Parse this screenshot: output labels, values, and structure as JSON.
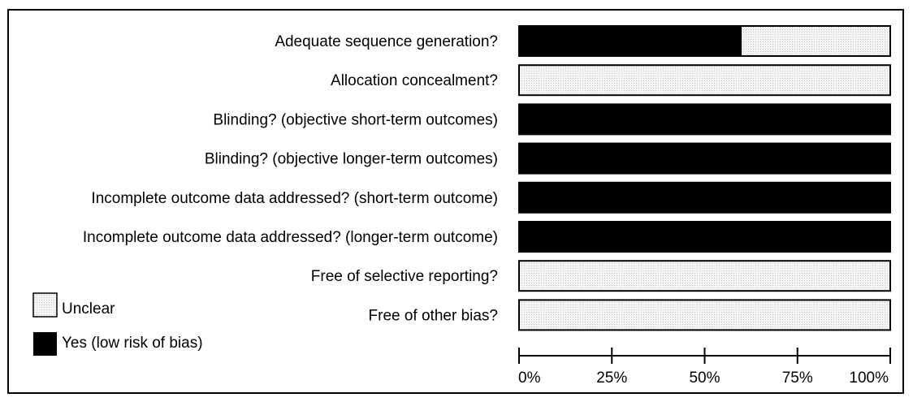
{
  "chart_data": {
    "type": "bar",
    "orientation": "horizontal",
    "stacked": true,
    "percent": true,
    "categories": [
      "Adequate sequence generation?",
      "Allocation concealment?",
      "Blinding? (objective short-term outcomes)",
      "Blinding? (objective longer-term outcomes)",
      "Incomplete outcome data addressed? (short-term outcome)",
      "Incomplete outcome data addressed? (longer-term outcome)",
      "Free of selective reporting?",
      "Free of other bias?"
    ],
    "series": [
      {
        "name": "Yes (low risk of bias)",
        "color": "#000000",
        "values": [
          60,
          0,
          100,
          100,
          100,
          100,
          0,
          0
        ]
      },
      {
        "name": "Unclear",
        "color": "#f2f2f2",
        "values": [
          40,
          100,
          0,
          0,
          0,
          0,
          100,
          100
        ]
      }
    ],
    "xlim": [
      0,
      100
    ],
    "xticks": [
      "0%",
      "25%",
      "50%",
      "75%",
      "100%"
    ],
    "legend": {
      "placement": "bottom-left",
      "entries": [
        "Unclear",
        "Yes (low risk of bias)"
      ]
    },
    "title": "",
    "xlabel": "",
    "ylabel": "",
    "grid": false
  }
}
